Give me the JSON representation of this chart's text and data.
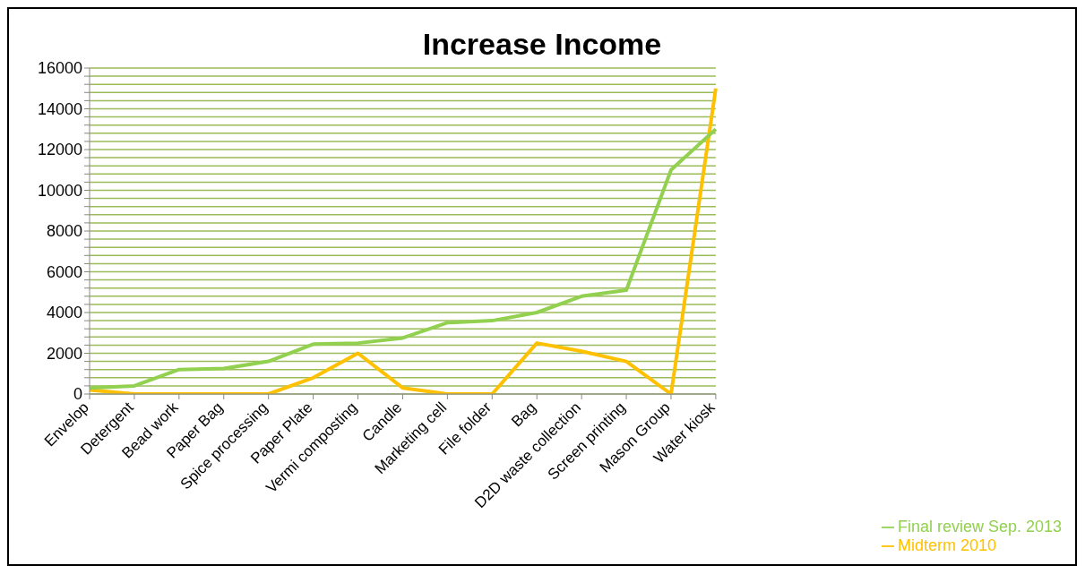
{
  "chart_data": {
    "type": "line",
    "title": "Increase Income",
    "categories": [
      "Envelop",
      "Detergent",
      "Bead work",
      "Paper Bag",
      "Spice processing",
      "Paper Plate",
      "Vermi composting",
      "Candle",
      "Marketing cell",
      "File folder",
      "Bag",
      "D2D waste collection",
      "Screen printing",
      "Mason Group",
      "Water kiosk"
    ],
    "series": [
      {
        "name": "Midterm 2010",
        "color": "#ffc000",
        "values": [
          200,
          0,
          0,
          0,
          0,
          800,
          2000,
          300,
          0,
          0,
          2500,
          2100,
          1600,
          0,
          15000
        ]
      },
      {
        "name": "Final review Sep. 2013",
        "color": "#92d050",
        "values": [
          300,
          400,
          1200,
          1250,
          1600,
          2450,
          2500,
          2750,
          3500,
          3600,
          4000,
          4800,
          5100,
          11000,
          13000
        ]
      }
    ],
    "ylim": [
      0,
      16000
    ],
    "yticks": [
      0,
      {
        "value": 400,
        "label": null
      },
      {
        "value": 800,
        "label": null
      },
      {
        "value": 1200,
        "label": null
      },
      {
        "value": 1600,
        "label": null
      },
      2000,
      {
        "value": 2400,
        "label": null
      },
      {
        "value": 2800,
        "label": null
      },
      {
        "value": 3200,
        "label": null
      },
      {
        "value": 3600,
        "label": null
      },
      4000,
      {
        "value": 4400,
        "label": null
      },
      {
        "value": 4800,
        "label": null
      },
      {
        "value": 5200,
        "label": null
      },
      {
        "value": 5600,
        "label": null
      },
      6000,
      {
        "value": 6400,
        "label": null
      },
      {
        "value": 6800,
        "label": null
      },
      {
        "value": 7200,
        "label": null
      },
      {
        "value": 7600,
        "label": null
      },
      8000,
      {
        "value": 8400,
        "label": null
      },
      {
        "value": 8800,
        "label": null
      },
      {
        "value": 9200,
        "label": null
      },
      {
        "value": 9600,
        "label": null
      },
      10000,
      {
        "value": 10400,
        "label": null
      },
      {
        "value": 10800,
        "label": null
      },
      {
        "value": 11200,
        "label": null
      },
      {
        "value": 11600,
        "label": null
      },
      12000,
      {
        "value": 12400,
        "label": null
      },
      {
        "value": 12800,
        "label": null
      },
      {
        "value": 13200,
        "label": null
      },
      {
        "value": 13600,
        "label": null
      },
      14000,
      {
        "value": 14400,
        "label": null
      },
      {
        "value": 14800,
        "label": null
      },
      {
        "value": 15200,
        "label": null
      },
      {
        "value": 15600,
        "label": null
      },
      16000
    ],
    "grid": "y",
    "legend": "bottom right",
    "marker": "none",
    "line_style": "solid"
  }
}
